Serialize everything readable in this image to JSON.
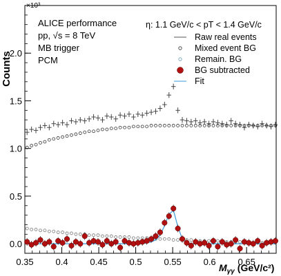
{
  "chart_data": {
    "type": "scatter",
    "ylabel": "Counts",
    "xlabel": "M",
    "xlabel_sub": "γγ",
    "xlabel_unit": "(GeV/c²)",
    "y_multiplier_label": "×10³",
    "annotations": {
      "left": [
        "ALICE performance",
        "pp, √s = 8 TeV",
        "MB trigger",
        "PCM"
      ],
      "right": "η: 1.1 GeV/c < pT < 1.4 GeV/c"
    },
    "legend": [
      {
        "label": "Raw real events",
        "marker": "hline",
        "color": "#555555"
      },
      {
        "label": "Mixed event BG",
        "marker": "open-circle",
        "color": "#333333"
      },
      {
        "label": "Remain. BG",
        "marker": "open-circle",
        "color": "#6a9fb5"
      },
      {
        "label": "BG subtracted",
        "marker": "filled-circle",
        "color": "#b01010"
      },
      {
        "label": "Fit",
        "marker": "line",
        "color": "#3a9ad9"
      }
    ],
    "legend_position": "top-right",
    "xlim": [
      0.35,
      0.69
    ],
    "ylim": [
      -0.1,
      2.5
    ],
    "x_ticks": [
      "0.35",
      "0.4",
      "0.45",
      "0.5",
      "0.55",
      "0.6",
      "0.65"
    ],
    "y_ticks": [
      "0.0",
      "0.5",
      "1.0",
      "1.5",
      "2.0"
    ],
    "x_tick_values": [
      0.35,
      0.4,
      0.45,
      0.5,
      0.55,
      0.6,
      0.65
    ],
    "y_tick_values": [
      0.0,
      0.5,
      1.0,
      1.5,
      2.0
    ],
    "x": [
      0.353,
      0.359,
      0.365,
      0.371,
      0.377,
      0.383,
      0.389,
      0.395,
      0.401,
      0.407,
      0.413,
      0.419,
      0.425,
      0.431,
      0.437,
      0.443,
      0.449,
      0.455,
      0.461,
      0.467,
      0.473,
      0.479,
      0.485,
      0.491,
      0.497,
      0.503,
      0.509,
      0.515,
      0.521,
      0.527,
      0.533,
      0.539,
      0.545,
      0.551,
      0.557,
      0.563,
      0.569,
      0.575,
      0.581,
      0.587,
      0.593,
      0.599,
      0.605,
      0.611,
      0.617,
      0.623,
      0.629,
      0.635,
      0.641,
      0.647,
      0.653,
      0.659,
      0.665,
      0.671,
      0.677,
      0.683,
      0.689
    ],
    "series": [
      {
        "name": "Raw real events",
        "values": [
          1.17,
          1.2,
          1.19,
          1.22,
          1.24,
          1.22,
          1.26,
          1.25,
          1.27,
          1.25,
          1.29,
          1.28,
          1.3,
          1.29,
          1.31,
          1.33,
          1.32,
          1.3,
          1.34,
          1.33,
          1.31,
          1.35,
          1.34,
          1.36,
          1.33,
          1.36,
          1.35,
          1.37,
          1.38,
          1.39,
          1.42,
          1.46,
          1.56,
          1.65,
          1.4,
          1.3,
          1.29,
          1.28,
          1.29,
          1.27,
          1.28,
          1.26,
          1.28,
          1.27,
          1.26,
          1.25,
          1.29,
          1.26,
          1.25,
          1.22,
          1.25,
          1.24,
          1.23,
          1.26,
          1.24,
          1.23,
          1.25
        ]
      },
      {
        "name": "Mixed event BG",
        "values": [
          1.01,
          1.03,
          1.04,
          1.06,
          1.07,
          1.09,
          1.1,
          1.11,
          1.12,
          1.13,
          1.14,
          1.15,
          1.16,
          1.17,
          1.18,
          1.18,
          1.19,
          1.2,
          1.2,
          1.21,
          1.21,
          1.22,
          1.22,
          1.22,
          1.23,
          1.23,
          1.23,
          1.23,
          1.24,
          1.24,
          1.24,
          1.24,
          1.24,
          1.24,
          1.24,
          1.24,
          1.24,
          1.24,
          1.24,
          1.24,
          1.24,
          1.24,
          1.24,
          1.24,
          1.24,
          1.24,
          1.24,
          1.24,
          1.24,
          1.24,
          1.24,
          1.24,
          1.24,
          1.24,
          1.24,
          1.24,
          1.24
        ]
      },
      {
        "name": "Remain. BG",
        "values": [
          0.16,
          0.15,
          0.15,
          0.14,
          0.14,
          0.13,
          0.13,
          0.12,
          0.12,
          0.11,
          0.11,
          0.1,
          0.1,
          0.1,
          0.09,
          0.09,
          0.09,
          0.08,
          0.08,
          0.08,
          0.07,
          0.07,
          0.07,
          0.07,
          0.06,
          0.06,
          0.06,
          0.06,
          0.05,
          0.05,
          0.05,
          0.05,
          0.05,
          0.04,
          0.04,
          0.04,
          0.04,
          0.04,
          0.03,
          0.03,
          0.03,
          0.03,
          0.03,
          0.03,
          0.02,
          0.02,
          0.02,
          0.02,
          0.02,
          0.02,
          0.02,
          0.01,
          0.01,
          0.01,
          0.01,
          0.01,
          0.01
        ]
      },
      {
        "name": "BG subtracted",
        "values": [
          0.02,
          -0.01,
          0.01,
          0.04,
          0.0,
          0.02,
          -0.03,
          0.03,
          0.01,
          0.05,
          -0.02,
          0.02,
          0.0,
          0.08,
          0.01,
          0.03,
          0.02,
          -0.01,
          0.03,
          0.0,
          0.02,
          -0.04,
          0.03,
          0.01,
          0.0,
          0.01,
          0.02,
          0.03,
          0.05,
          0.08,
          0.12,
          0.22,
          0.29,
          0.37,
          0.16,
          0.05,
          0.01,
          -0.02,
          0.02,
          0.0,
          0.01,
          -0.02,
          0.03,
          -0.03,
          0.02,
          -0.01,
          0.0,
          0.04,
          -0.05,
          0.02,
          0.01,
          0.0,
          0.03,
          -0.02,
          0.01,
          0.02,
          0.03
        ]
      },
      {
        "name": "Fit",
        "values": [
          0.0,
          0.0,
          0.0,
          0.0,
          0.0,
          0.0,
          0.0,
          0.0,
          0.0,
          0.0,
          0.0,
          0.0,
          0.0,
          0.0,
          0.0,
          0.0,
          0.0,
          0.0,
          0.0,
          0.0,
          0.0,
          0.0,
          0.0,
          0.0,
          0.0,
          0.0,
          0.0,
          0.01,
          0.02,
          0.04,
          0.09,
          0.19,
          0.31,
          0.35,
          0.18,
          0.05,
          0.01,
          0.0,
          0.0,
          0.0,
          0.0,
          0.0,
          0.0,
          0.0,
          0.0,
          0.0,
          0.0,
          0.0,
          0.0,
          0.0,
          0.0,
          0.0,
          0.0,
          0.0,
          0.0,
          0.0,
          0.0
        ]
      }
    ]
  }
}
